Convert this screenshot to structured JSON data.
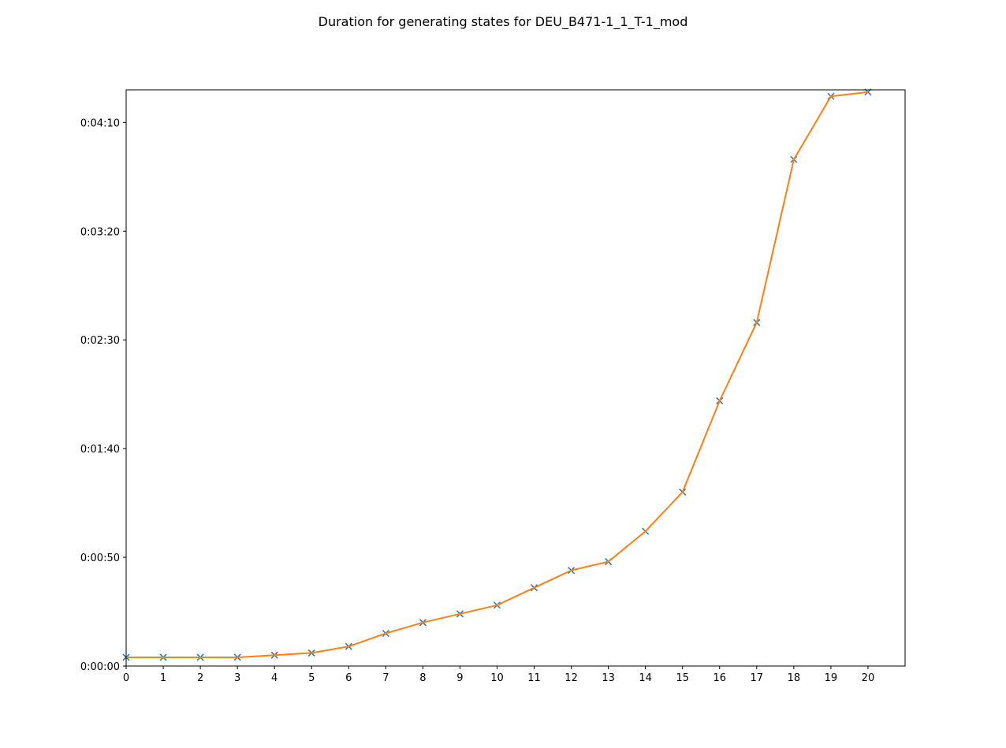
{
  "chart_data": {
    "type": "line",
    "title": "Duration for generating states for DEU_B471-1_1_T-1_mod",
    "xlabel": "",
    "ylabel": "",
    "x": [
      0,
      1,
      2,
      3,
      4,
      5,
      6,
      7,
      8,
      9,
      10,
      11,
      12,
      13,
      14,
      15,
      16,
      17,
      18,
      19,
      20
    ],
    "xlim": [
      0,
      21
    ],
    "xticks": [
      0,
      1,
      2,
      3,
      4,
      5,
      6,
      7,
      8,
      9,
      10,
      11,
      12,
      13,
      14,
      15,
      16,
      17,
      18,
      19,
      20
    ],
    "ylim_seconds": [
      0,
      265
    ],
    "yticks_seconds": [
      0,
      50,
      100,
      150,
      200,
      250
    ],
    "ytick_labels": [
      "0:00:00",
      "0:00:50",
      "0:01:40",
      "0:02:30",
      "0:03:20",
      "0:04:10"
    ],
    "series": [
      {
        "values_seconds": [
          4,
          4,
          4,
          4,
          5,
          6,
          9,
          15,
          20,
          24,
          28,
          36,
          44,
          48,
          62,
          80,
          122,
          158,
          233,
          262,
          264
        ],
        "color": "#1f77b4",
        "marker": "x",
        "linestyle": "none"
      },
      {
        "values_seconds": [
          4,
          4,
          4,
          4,
          5,
          6,
          9,
          15,
          20,
          24,
          28,
          36,
          44,
          48,
          62,
          80,
          122,
          158,
          233,
          262,
          264
        ],
        "color": "#ff7f0e",
        "marker": "none",
        "linestyle": "solid"
      }
    ],
    "grid": false,
    "legend": "none"
  }
}
